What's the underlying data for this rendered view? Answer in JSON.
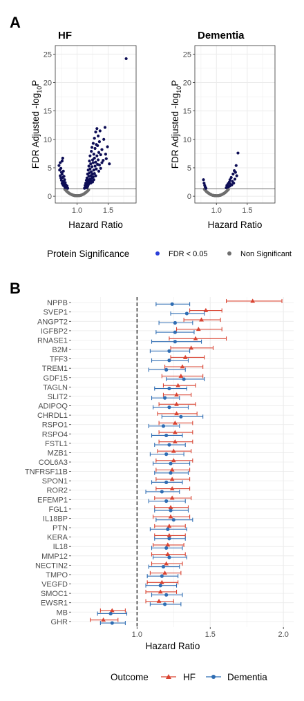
{
  "panels": {
    "a_tag": "A",
    "b_tag": "B"
  },
  "colors": {
    "significant": "#0d0d55",
    "legend_significant": "#2b3fd9",
    "nonsignificant": "#6e6e6e",
    "hf": "#d94432",
    "dementia": "#2f6db3",
    "grid": "#ebebeb",
    "border": "#333333"
  },
  "chart_data": [
    {
      "type": "scatter",
      "title": "HF",
      "xlabel": "Hazard Ratio",
      "ylabel": "FDR Adjusted -log10P",
      "xlim": [
        0.65,
        1.95
      ],
      "ylim": [
        -1.2,
        26.5
      ],
      "xticks": [
        1.0,
        1.5
      ],
      "yticks": [
        0,
        5,
        10,
        15,
        20,
        25
      ],
      "hline": 1.3,
      "grid": true,
      "significant": [
        [
          0.71,
          5.4
        ],
        [
          0.72,
          4.6
        ],
        [
          0.73,
          5.9
        ],
        [
          0.73,
          3.6
        ],
        [
          0.74,
          4.9
        ],
        [
          0.74,
          3.2
        ],
        [
          0.75,
          4.2
        ],
        [
          0.75,
          2.8
        ],
        [
          0.76,
          6.2
        ],
        [
          0.76,
          3.9
        ],
        [
          0.76,
          2.3
        ],
        [
          0.77,
          6.7
        ],
        [
          0.77,
          3.3
        ],
        [
          0.77,
          2.1
        ],
        [
          0.78,
          4.4
        ],
        [
          0.78,
          2.6
        ],
        [
          0.78,
          1.9
        ],
        [
          0.79,
          3.5
        ],
        [
          0.79,
          2.2
        ],
        [
          0.8,
          2.9
        ],
        [
          0.8,
          1.7
        ],
        [
          0.81,
          2.4
        ],
        [
          0.81,
          1.5
        ],
        [
          0.82,
          2.0
        ],
        [
          0.83,
          1.6
        ],
        [
          0.84,
          1.8
        ],
        [
          0.85,
          1.4
        ],
        [
          1.12,
          1.4
        ],
        [
          1.13,
          1.9
        ],
        [
          1.13,
          1.5
        ],
        [
          1.14,
          2.3
        ],
        [
          1.14,
          1.6
        ],
        [
          1.15,
          2.8
        ],
        [
          1.15,
          1.8
        ],
        [
          1.16,
          3.2
        ],
        [
          1.16,
          2.1
        ],
        [
          1.16,
          1.5
        ],
        [
          1.17,
          3.9
        ],
        [
          1.17,
          2.5
        ],
        [
          1.17,
          1.7
        ],
        [
          1.18,
          4.6
        ],
        [
          1.18,
          2.9
        ],
        [
          1.18,
          2.0
        ],
        [
          1.19,
          5.3
        ],
        [
          1.19,
          3.5
        ],
        [
          1.19,
          2.2
        ],
        [
          1.2,
          6.2
        ],
        [
          1.2,
          4.1
        ],
        [
          1.2,
          2.6
        ],
        [
          1.21,
          7.1
        ],
        [
          1.21,
          4.8
        ],
        [
          1.21,
          3.0
        ],
        [
          1.22,
          5.7
        ],
        [
          1.22,
          3.6
        ],
        [
          1.22,
          2.3
        ],
        [
          1.23,
          7.9
        ],
        [
          1.23,
          4.3
        ],
        [
          1.23,
          2.7
        ],
        [
          1.24,
          8.6
        ],
        [
          1.24,
          5.2
        ],
        [
          1.24,
          3.2
        ],
        [
          1.25,
          6.4
        ],
        [
          1.25,
          3.9
        ],
        [
          1.25,
          2.5
        ],
        [
          1.26,
          9.3
        ],
        [
          1.26,
          5.9
        ],
        [
          1.26,
          3.4
        ],
        [
          1.27,
          7.4
        ],
        [
          1.27,
          4.6
        ],
        [
          1.27,
          2.9
        ],
        [
          1.28,
          10.2
        ],
        [
          1.28,
          6.7
        ],
        [
          1.28,
          4.0
        ],
        [
          1.29,
          8.4
        ],
        [
          1.29,
          5.3
        ],
        [
          1.3,
          11.3
        ],
        [
          1.3,
          6.0
        ],
        [
          1.3,
          3.6
        ],
        [
          1.31,
          9.1
        ],
        [
          1.31,
          4.8
        ],
        [
          1.32,
          11.9
        ],
        [
          1.32,
          7.1
        ],
        [
          1.33,
          8.9
        ],
        [
          1.33,
          5.6
        ],
        [
          1.34,
          10.6
        ],
        [
          1.34,
          6.4
        ],
        [
          1.35,
          7.7
        ],
        [
          1.35,
          4.4
        ],
        [
          1.36,
          9.6
        ],
        [
          1.36,
          5.5
        ],
        [
          1.37,
          11.5
        ],
        [
          1.38,
          7.3
        ],
        [
          1.38,
          4.9
        ],
        [
          1.4,
          8.2
        ],
        [
          1.4,
          5.9
        ],
        [
          1.42,
          6.3
        ],
        [
          1.43,
          10.0
        ],
        [
          1.45,
          12.1
        ],
        [
          1.46,
          7.4
        ],
        [
          1.47,
          6.6
        ],
        [
          1.49,
          8.7
        ],
        [
          1.52,
          5.7
        ],
        [
          1.79,
          24.2
        ]
      ],
      "nonsignificant_note": "dense grey points near y = 0 around x = 1.0"
    },
    {
      "type": "scatter",
      "title": "Dementia",
      "xlabel": "Hazard Ratio",
      "ylabel": "FDR Adjusted -log10P",
      "xlim": [
        0.65,
        1.95
      ],
      "ylim": [
        -1.2,
        26.5
      ],
      "xticks": [
        1.0,
        1.5
      ],
      "yticks": [
        0,
        5,
        10,
        15,
        20,
        25
      ],
      "hline": 1.3,
      "grid": true,
      "significant": [
        [
          0.79,
          2.9
        ],
        [
          0.8,
          2.3
        ],
        [
          0.81,
          1.9
        ],
        [
          0.82,
          1.6
        ],
        [
          0.83,
          1.4
        ],
        [
          1.16,
          1.5
        ],
        [
          1.17,
          1.9
        ],
        [
          1.18,
          1.6
        ],
        [
          1.19,
          2.2
        ],
        [
          1.2,
          1.7
        ],
        [
          1.21,
          2.5
        ],
        [
          1.22,
          1.8
        ],
        [
          1.22,
          2.9
        ],
        [
          1.23,
          2.1
        ],
        [
          1.24,
          3.3
        ],
        [
          1.25,
          2.0
        ],
        [
          1.26,
          2.6
        ],
        [
          1.27,
          3.9
        ],
        [
          1.28,
          2.3
        ],
        [
          1.29,
          4.5
        ],
        [
          1.3,
          3.0
        ],
        [
          1.31,
          4.2
        ],
        [
          1.32,
          5.4
        ],
        [
          1.33,
          3.6
        ],
        [
          1.35,
          7.6
        ]
      ],
      "nonsignificant_note": "dense grey points near y = 0 around x = 1.0"
    },
    {
      "type": "forest",
      "xlabel": "Hazard Ratio",
      "xlim": [
        0.55,
        2.07
      ],
      "xticks": [
        1.0,
        1.5,
        2.0
      ],
      "refline": 1.0,
      "grid": true,
      "series": [
        "HF",
        "Dementia"
      ],
      "proteins": [
        {
          "name": "NPPB",
          "hf": [
            1.79,
            1.61,
            1.99
          ],
          "dem": [
            1.24,
            1.13,
            1.36
          ]
        },
        {
          "name": "SVEP1",
          "hf": [
            1.47,
            1.36,
            1.58
          ],
          "dem": [
            1.34,
            1.23,
            1.46
          ]
        },
        {
          "name": "ANGPT2",
          "hf": [
            1.44,
            1.32,
            1.57
          ],
          "dem": [
            1.26,
            1.15,
            1.38
          ]
        },
        {
          "name": "IGFBP2",
          "hf": [
            1.42,
            1.27,
            1.58
          ],
          "dem": [
            1.26,
            1.13,
            1.39
          ]
        },
        {
          "name": "RNASE1",
          "hf": [
            1.4,
            1.22,
            1.61
          ],
          "dem": [
            1.26,
            1.1,
            1.44
          ]
        },
        {
          "name": "B2M",
          "hf": [
            1.37,
            1.23,
            1.52
          ],
          "dem": [
            1.22,
            1.09,
            1.36
          ]
        },
        {
          "name": "TFF3",
          "hf": [
            1.33,
            1.23,
            1.46
          ],
          "dem": [
            1.22,
            1.1,
            1.35
          ]
        },
        {
          "name": "TREM1",
          "hf": [
            1.31,
            1.19,
            1.45
          ],
          "dem": [
            1.2,
            1.08,
            1.33
          ]
        },
        {
          "name": "GDF15",
          "hf": [
            1.3,
            1.17,
            1.45
          ],
          "dem": [
            1.32,
            1.2,
            1.46
          ]
        },
        {
          "name": "TAGLN",
          "hf": [
            1.28,
            1.18,
            1.4
          ],
          "dem": [
            1.22,
            1.12,
            1.34
          ]
        },
        {
          "name": "SLIT2",
          "hf": [
            1.27,
            1.18,
            1.37
          ],
          "dem": [
            1.19,
            1.1,
            1.29
          ]
        },
        {
          "name": "ADIPOQ",
          "hf": [
            1.27,
            1.15,
            1.4
          ],
          "dem": [
            1.22,
            1.11,
            1.35
          ]
        },
        {
          "name": "CHRDL1",
          "hf": [
            1.27,
            1.14,
            1.41
          ],
          "dem": [
            1.3,
            1.17,
            1.45
          ]
        },
        {
          "name": "RSPO1",
          "hf": [
            1.26,
            1.15,
            1.38
          ],
          "dem": [
            1.18,
            1.08,
            1.29
          ]
        },
        {
          "name": "RSPO4",
          "hf": [
            1.26,
            1.15,
            1.38
          ],
          "dem": [
            1.2,
            1.1,
            1.31
          ]
        },
        {
          "name": "FSTL1",
          "hf": [
            1.26,
            1.15,
            1.38
          ],
          "dem": [
            1.22,
            1.12,
            1.33
          ]
        },
        {
          "name": "MZB1",
          "hf": [
            1.25,
            1.14,
            1.37
          ],
          "dem": [
            1.2,
            1.09,
            1.32
          ]
        },
        {
          "name": "COL6A3",
          "hf": [
            1.25,
            1.13,
            1.38
          ],
          "dem": [
            1.23,
            1.11,
            1.36
          ]
        },
        {
          "name": "TNFRSF11B",
          "hf": [
            1.24,
            1.13,
            1.36
          ],
          "dem": [
            1.23,
            1.12,
            1.35
          ]
        },
        {
          "name": "SPON1",
          "hf": [
            1.24,
            1.13,
            1.36
          ],
          "dem": [
            1.2,
            1.1,
            1.31
          ]
        },
        {
          "name": "ROR2",
          "hf": [
            1.24,
            1.13,
            1.36
          ],
          "dem": [
            1.17,
            1.06,
            1.29
          ]
        },
        {
          "name": "EFEMP1",
          "hf": [
            1.24,
            1.12,
            1.37
          ],
          "dem": [
            1.2,
            1.08,
            1.33
          ]
        },
        {
          "name": "FGL1",
          "hf": [
            1.23,
            1.12,
            1.35
          ],
          "dem": [
            1.23,
            1.12,
            1.35
          ]
        },
        {
          "name": "IL18BP",
          "hf": [
            1.23,
            1.11,
            1.36
          ],
          "dem": [
            1.25,
            1.13,
            1.38
          ]
        },
        {
          "name": "PTN",
          "hf": [
            1.22,
            1.12,
            1.33
          ],
          "dem": [
            1.21,
            1.09,
            1.34
          ]
        },
        {
          "name": "KERA",
          "hf": [
            1.22,
            1.12,
            1.33
          ],
          "dem": [
            1.22,
            1.12,
            1.33
          ]
        },
        {
          "name": "IL18",
          "hf": [
            1.21,
            1.11,
            1.32
          ],
          "dem": [
            1.2,
            1.1,
            1.31
          ]
        },
        {
          "name": "MMP12",
          "hf": [
            1.21,
            1.1,
            1.33
          ],
          "dem": [
            1.22,
            1.11,
            1.34
          ]
        },
        {
          "name": "NECTIN2",
          "hf": [
            1.2,
            1.1,
            1.31
          ],
          "dem": [
            1.18,
            1.08,
            1.29
          ]
        },
        {
          "name": "TMPO",
          "hf": [
            1.19,
            1.09,
            1.3
          ],
          "dem": [
            1.17,
            1.07,
            1.28
          ]
        },
        {
          "name": "VEGFD",
          "hf": [
            1.17,
            1.07,
            1.28
          ],
          "dem": [
            1.16,
            1.06,
            1.27
          ]
        },
        {
          "name": "SMOC1",
          "hf": [
            1.16,
            1.06,
            1.27
          ],
          "dem": [
            1.2,
            1.1,
            1.31
          ]
        },
        {
          "name": "EWSR1",
          "hf": [
            1.15,
            1.06,
            1.25
          ],
          "dem": [
            1.19,
            1.09,
            1.3
          ]
        },
        {
          "name": "MB",
          "hf": [
            0.83,
            0.75,
            0.92
          ],
          "dem": [
            0.82,
            0.73,
            0.93
          ]
        },
        {
          "name": "GHR",
          "hf": [
            0.77,
            0.68,
            0.87
          ],
          "dem": [
            0.83,
            0.75,
            0.92
          ]
        }
      ]
    }
  ],
  "legend_a": {
    "title": "Protein Significance",
    "items": [
      "FDR < 0.05",
      "Non Significant"
    ]
  },
  "legend_b": {
    "title": "Outcome",
    "items": [
      "HF",
      "Dementia"
    ]
  }
}
